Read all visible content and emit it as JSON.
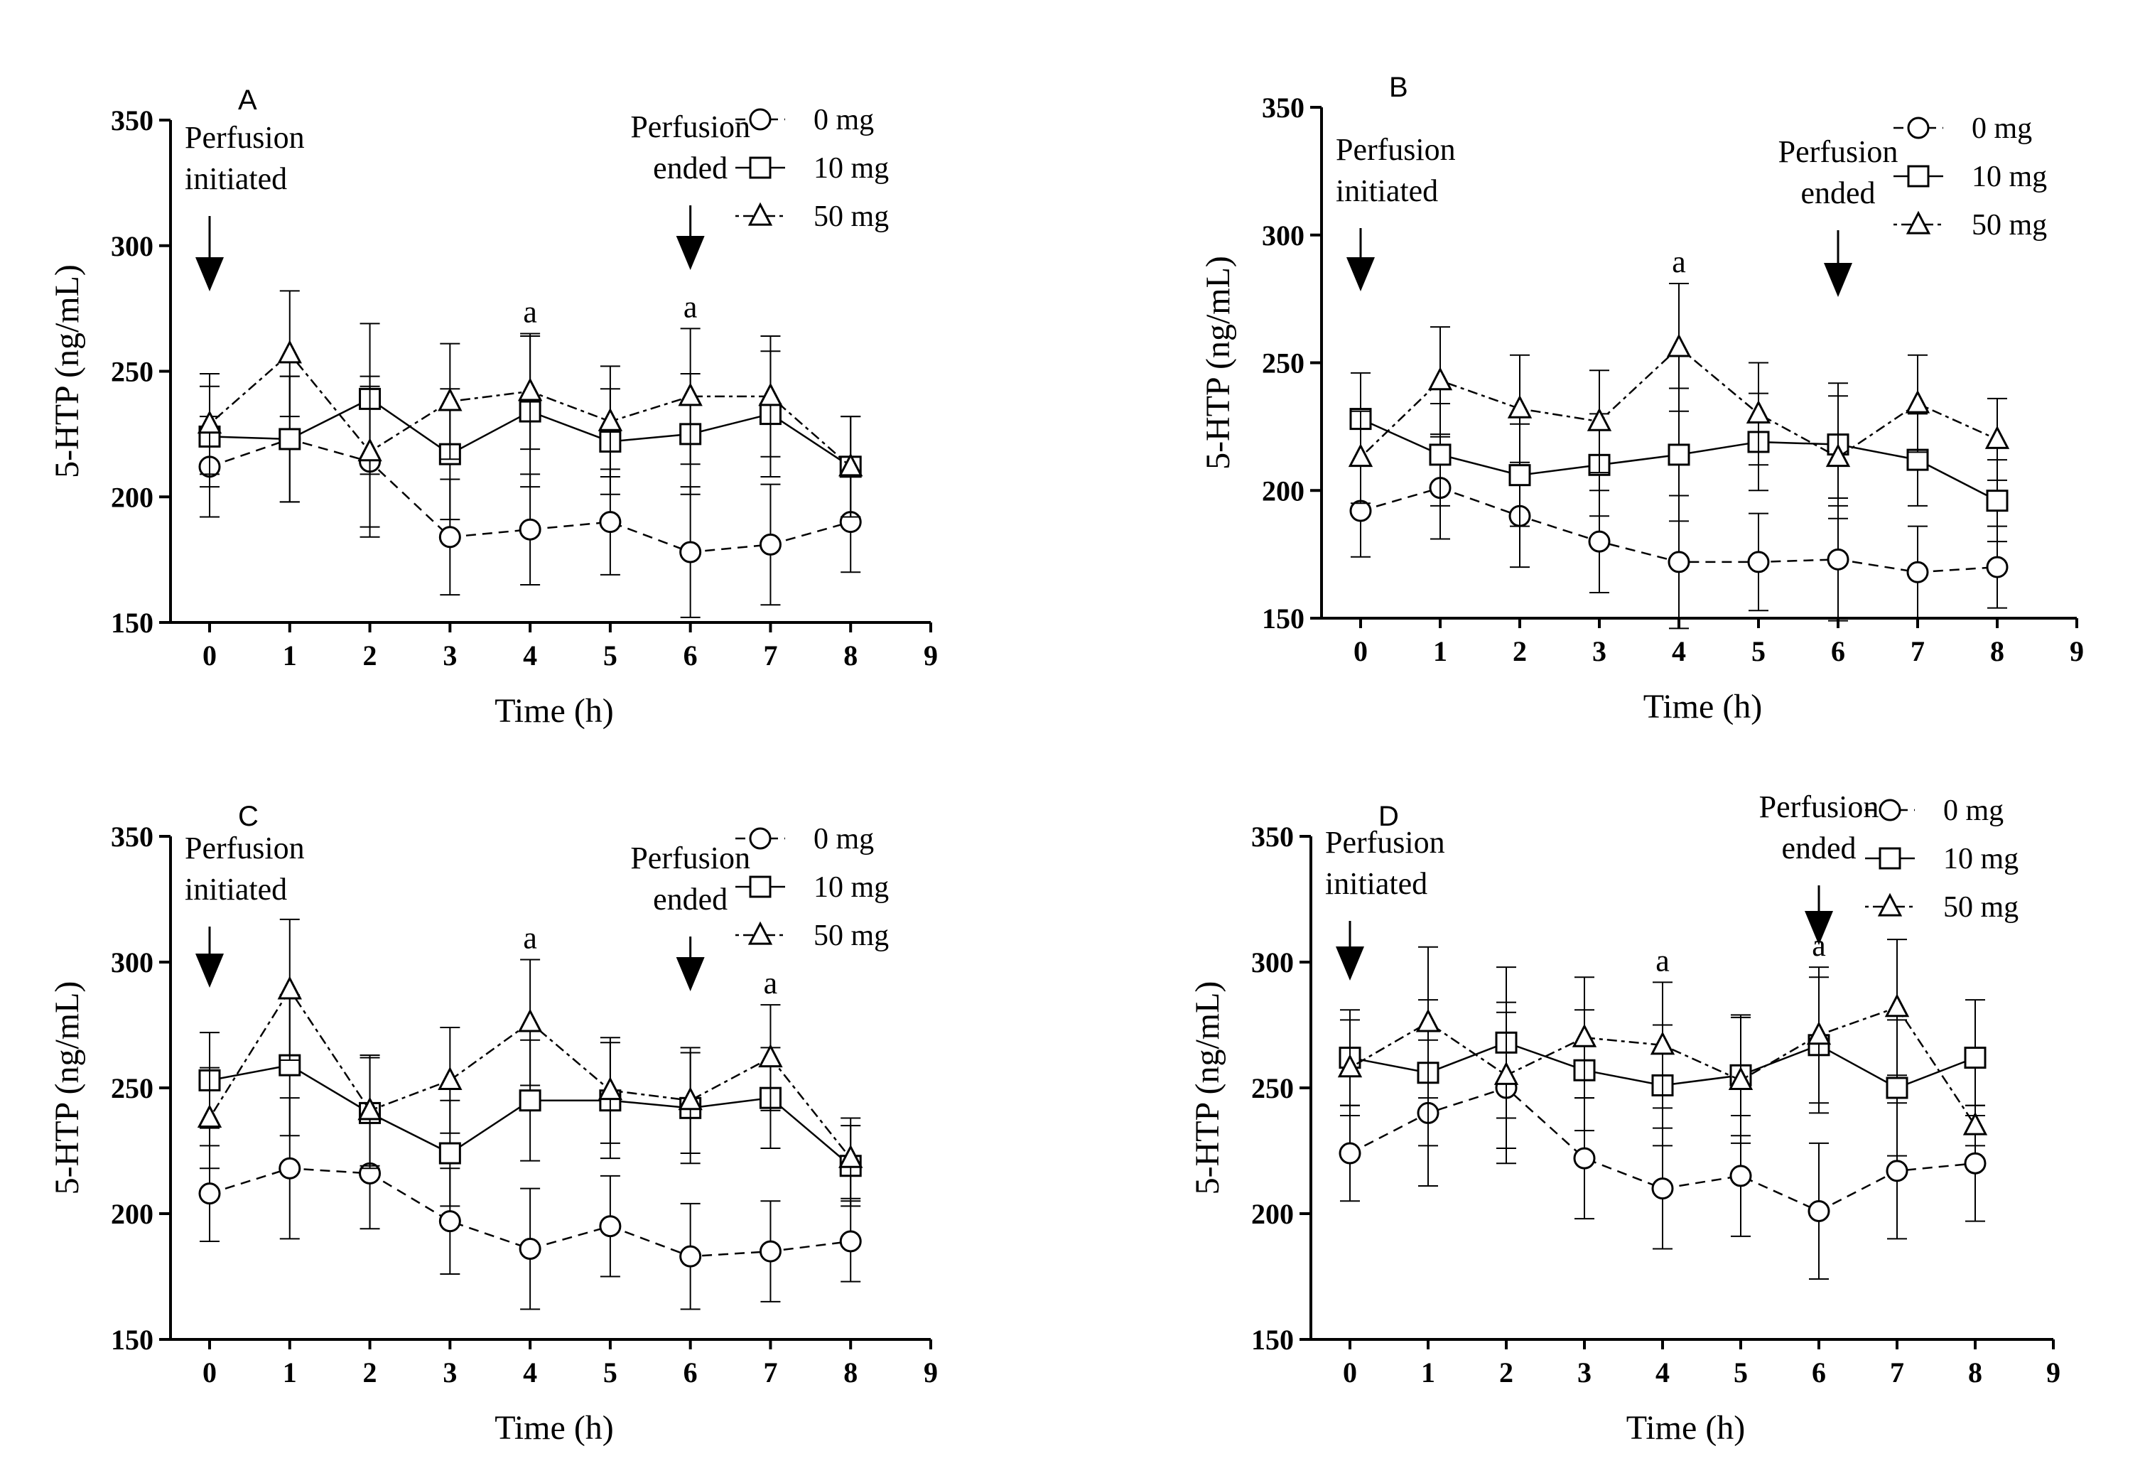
{
  "chart_data": [
    {
      "type": "line",
      "panel_label": "A",
      "xlabel": "Time (h)",
      "ylabel": "5-HTP (ng/mL)",
      "xlim": [
        0,
        9
      ],
      "ylim": [
        150,
        350
      ],
      "x_ticks": [
        0,
        1,
        2,
        3,
        4,
        5,
        6,
        7,
        8,
        9
      ],
      "y_ticks": [
        150,
        200,
        250,
        300,
        350
      ],
      "grid": false,
      "legend_position": "top-right",
      "x": [
        0,
        1,
        2,
        3,
        4,
        5,
        6,
        7,
        8
      ],
      "series": [
        {
          "name": "0 mg",
          "marker": "circle",
          "line_style": "dashed",
          "values": [
            212,
            223,
            214,
            184,
            187,
            190,
            178,
            181,
            190
          ],
          "error": [
            20,
            25,
            30,
            23,
            22,
            21,
            26,
            24,
            20
          ]
        },
        {
          "name": "10 mg",
          "marker": "square",
          "line_style": "solid",
          "values": [
            224,
            223,
            239,
            217,
            234,
            222,
            225,
            233,
            212
          ],
          "error": [
            20,
            25,
            30,
            26,
            30,
            21,
            24,
            25,
            20
          ]
        },
        {
          "name": "50 mg",
          "marker": "triangle",
          "line_style": "dotted",
          "values": [
            229,
            257,
            218,
            238,
            242,
            230,
            240,
            240,
            212
          ],
          "error": [
            20,
            25,
            30,
            23,
            23,
            22,
            27,
            24,
            20
          ]
        }
      ],
      "annotations": [
        {
          "text": "Perfusion initiated",
          "lines": [
            "Perfusion",
            "initiated"
          ],
          "x": 0
        },
        {
          "text": "Perfusion ended",
          "lines": [
            "Perfusion",
            "ended"
          ],
          "x": 6
        }
      ],
      "significance": [
        {
          "text": "a",
          "x": 4
        },
        {
          "text": "a",
          "x": 6
        }
      ]
    },
    {
      "type": "line",
      "panel_label": "B",
      "xlabel": "Time (h)",
      "ylabel": "5-HTP (ng/mL)",
      "xlim": [
        0,
        9
      ],
      "ylim": [
        150,
        350
      ],
      "x_ticks": [
        0,
        1,
        2,
        3,
        4,
        5,
        6,
        7,
        8,
        9
      ],
      "y_ticks": [
        150,
        200,
        250,
        300,
        350
      ],
      "grid": false,
      "legend_position": "top-right",
      "x": [
        0,
        1,
        2,
        3,
        4,
        5,
        6,
        7,
        8
      ],
      "series": [
        {
          "name": "0 mg",
          "marker": "circle",
          "line_style": "dashed",
          "values": [
            192,
            201,
            190,
            180,
            172,
            172,
            173,
            168,
            170
          ],
          "error": [
            18,
            20,
            20,
            20,
            26,
            19,
            24,
            18,
            16
          ]
        },
        {
          "name": "10 mg",
          "marker": "square",
          "line_style": "solid",
          "values": [
            228,
            214,
            206,
            210,
            214,
            219,
            218,
            212,
            196
          ],
          "error": [
            18,
            20,
            20,
            20,
            26,
            19,
            24,
            18,
            16
          ]
        },
        {
          "name": "50 mg",
          "marker": "triangle",
          "line_style": "dotted",
          "values": [
            213,
            243,
            232,
            227,
            256,
            230,
            213,
            234,
            220
          ],
          "error": [
            18,
            21,
            21,
            20,
            25,
            20,
            24,
            19,
            16
          ]
        }
      ],
      "annotations": [
        {
          "text": "Perfusion initiated",
          "lines": [
            "Perfusion",
            "initiated"
          ],
          "x": 0
        },
        {
          "text": "Perfusion ended",
          "lines": [
            "Perfusion",
            "ended"
          ],
          "x": 6
        }
      ],
      "significance": [
        {
          "text": "a",
          "x": 4
        }
      ]
    },
    {
      "type": "line",
      "panel_label": "C",
      "xlabel": "Time (h)",
      "ylabel": "5-HTP (ng/mL)",
      "xlim": [
        0,
        9
      ],
      "ylim": [
        150,
        350
      ],
      "x_ticks": [
        0,
        1,
        2,
        3,
        4,
        5,
        6,
        7,
        8,
        9
      ],
      "y_ticks": [
        150,
        200,
        250,
        300,
        350
      ],
      "grid": false,
      "legend_position": "top-right",
      "x": [
        0,
        1,
        2,
        3,
        4,
        5,
        6,
        7,
        8
      ],
      "series": [
        {
          "name": "0 mg",
          "marker": "circle",
          "line_style": "dashed",
          "values": [
            208,
            218,
            216,
            197,
            186,
            195,
            183,
            185,
            189
          ],
          "error": [
            19,
            28,
            22,
            21,
            24,
            20,
            21,
            20,
            16
          ]
        },
        {
          "name": "10 mg",
          "marker": "square",
          "line_style": "solid",
          "values": [
            253,
            259,
            240,
            224,
            245,
            245,
            242,
            246,
            219
          ],
          "error": [
            19,
            28,
            22,
            21,
            24,
            23,
            22,
            20,
            16
          ]
        },
        {
          "name": "50 mg",
          "marker": "triangle",
          "line_style": "dotted",
          "values": [
            238,
            289,
            241,
            253,
            276,
            249,
            245,
            262,
            222
          ],
          "error": [
            20,
            28,
            22,
            21,
            25,
            21,
            21,
            21,
            16
          ]
        }
      ],
      "annotations": [
        {
          "text": "Perfusion initiated",
          "lines": [
            "Perfusion",
            "initiated"
          ],
          "x": 0
        },
        {
          "text": "Perfusion ended",
          "lines": [
            "Perfusion",
            "ended"
          ],
          "x": 6
        }
      ],
      "significance": [
        {
          "text": "a",
          "x": 4
        },
        {
          "text": "a",
          "x": 7
        }
      ]
    },
    {
      "type": "line",
      "panel_label": "D",
      "xlabel": "Time (h)",
      "ylabel": "5-HTP (ng/mL)",
      "xlim": [
        0,
        9
      ],
      "ylim": [
        150,
        350
      ],
      "x_ticks": [
        0,
        1,
        2,
        3,
        4,
        5,
        6,
        7,
        8,
        9
      ],
      "y_ticks": [
        150,
        200,
        250,
        300,
        350
      ],
      "grid": false,
      "legend_position": "top-right",
      "x": [
        0,
        1,
        2,
        3,
        4,
        5,
        6,
        7,
        8
      ],
      "series": [
        {
          "name": "0 mg",
          "marker": "circle",
          "line_style": "dashed",
          "values": [
            224,
            240,
            250,
            222,
            210,
            215,
            201,
            217,
            220
          ],
          "error": [
            19,
            29,
            30,
            24,
            24,
            24,
            27,
            27,
            23
          ]
        },
        {
          "name": "10 mg",
          "marker": "square",
          "line_style": "solid",
          "values": [
            262,
            256,
            268,
            257,
            251,
            255,
            267,
            250,
            262
          ],
          "error": [
            19,
            29,
            30,
            24,
            24,
            24,
            27,
            27,
            23
          ]
        },
        {
          "name": "50 mg",
          "marker": "triangle",
          "line_style": "dotted",
          "values": [
            258,
            276,
            255,
            270,
            267,
            253,
            271,
            282,
            235
          ],
          "error": [
            19,
            30,
            29,
            24,
            25,
            25,
            27,
            27,
            8
          ]
        }
      ],
      "annotations": [
        {
          "text": "Perfusion initiated",
          "lines": [
            "Perfusion",
            "initiated"
          ],
          "x": 0
        },
        {
          "text": "Perfusion ended",
          "lines": [
            "Perfusion",
            "ended"
          ],
          "x": 6
        }
      ],
      "significance": [
        {
          "text": "a",
          "x": 4
        },
        {
          "text": "a",
          "x": 6
        }
      ]
    }
  ]
}
